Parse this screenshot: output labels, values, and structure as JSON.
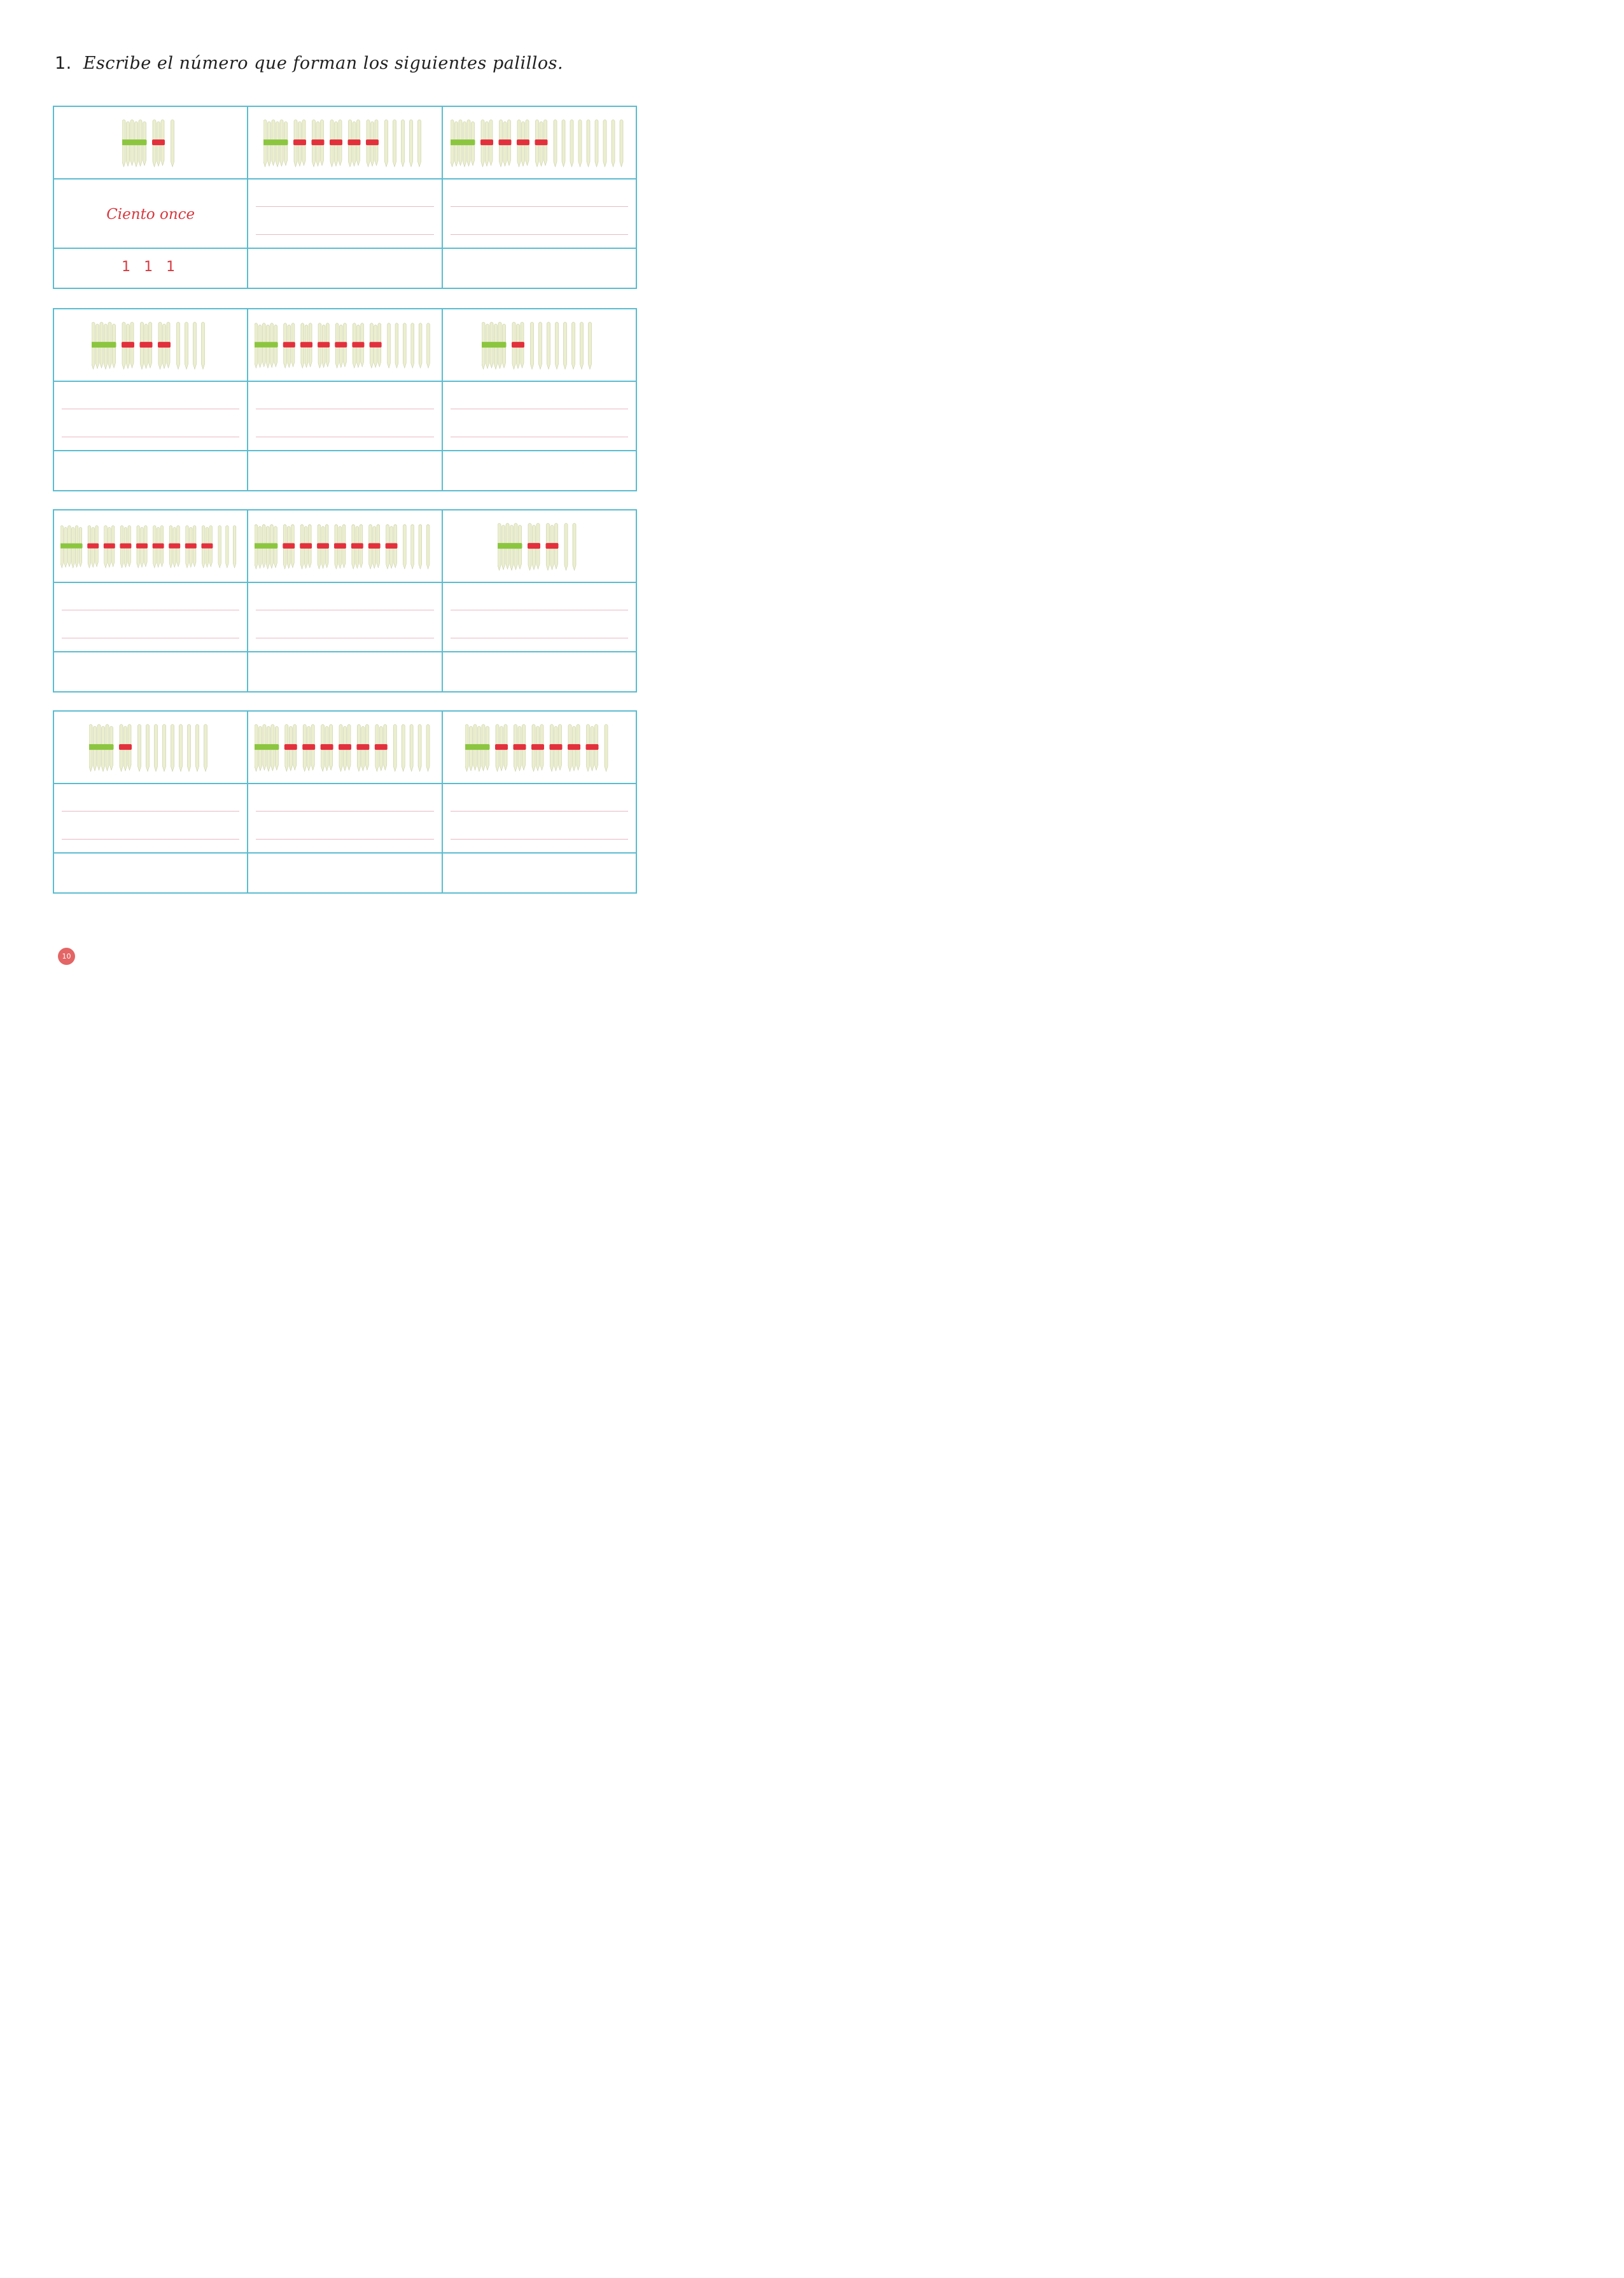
{
  "instruction": {
    "number": "1.",
    "text": "Escribe el número que forman los siguientes palillos."
  },
  "example": {
    "word": "Ciento once",
    "digits": "1 1 1"
  },
  "stick_groups": [
    [
      {
        "hundreds": 1,
        "tens": 1,
        "ones": 1
      },
      {
        "hundreds": 1,
        "tens": 5,
        "ones": 5
      },
      {
        "hundreds": 1,
        "tens": 4,
        "ones": 9
      }
    ],
    [
      {
        "hundreds": 1,
        "tens": 3,
        "ones": 4
      },
      {
        "hundreds": 1,
        "tens": 6,
        "ones": 6
      },
      {
        "hundreds": 1,
        "tens": 1,
        "ones": 8
      }
    ],
    [
      {
        "hundreds": 1,
        "tens": 8,
        "ones": 3
      },
      {
        "hundreds": 1,
        "tens": 7,
        "ones": 4
      },
      {
        "hundreds": 1,
        "tens": 2,
        "ones": 2
      }
    ],
    [
      {
        "hundreds": 1,
        "tens": 1,
        "ones": 9
      },
      {
        "hundreds": 1,
        "tens": 6,
        "ones": 5
      },
      {
        "hundreds": 1,
        "tens": 6,
        "ones": 1
      }
    ]
  ],
  "colors": {
    "grid": "#5bbcd0",
    "hundred_band": "#8cc640",
    "ten_band": "#e3303d",
    "stick": "#ecefcf",
    "stick_outline": "#c9cca3",
    "answer_text": "#d7383f",
    "writing_line": "#e8b8c4",
    "page_badge": "#e36565"
  },
  "page_number": "10"
}
